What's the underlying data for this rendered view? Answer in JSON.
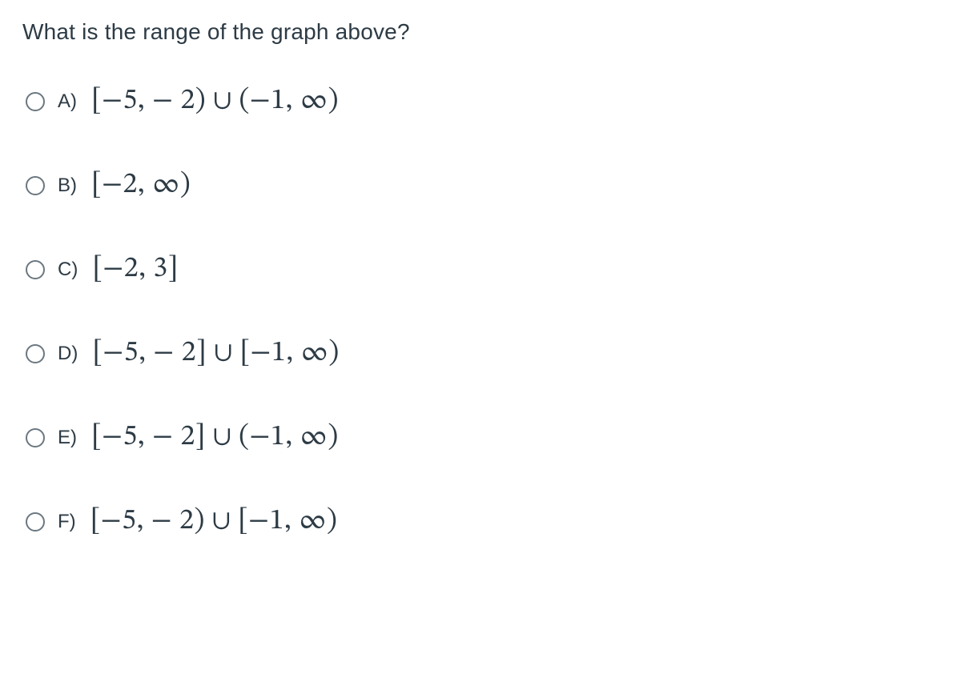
{
  "question": {
    "text": "What is the range of the graph above?"
  },
  "options": [
    {
      "letter": "A)",
      "math": "[−5,  − 2) ∪ (−1,  ∞)"
    },
    {
      "letter": "B)",
      "math": "[−2,  ∞)"
    },
    {
      "letter": "C)",
      "math": "[−2,  3]"
    },
    {
      "letter": "D)",
      "math": "[−5,  − 2] ∪ [−1,  ∞)"
    },
    {
      "letter": "E)",
      "math": "[−5,  − 2] ∪ (−1,  ∞)"
    },
    {
      "letter": "F)",
      "math": "[−5,  − 2) ∪ [−1,  ∞)"
    }
  ],
  "colors": {
    "text": "#2d3b45",
    "radio_border": "#6b7780",
    "background": "#ffffff"
  },
  "typography": {
    "question_fontsize": 28,
    "option_letter_fontsize": 24,
    "option_math_fontsize": 36
  }
}
